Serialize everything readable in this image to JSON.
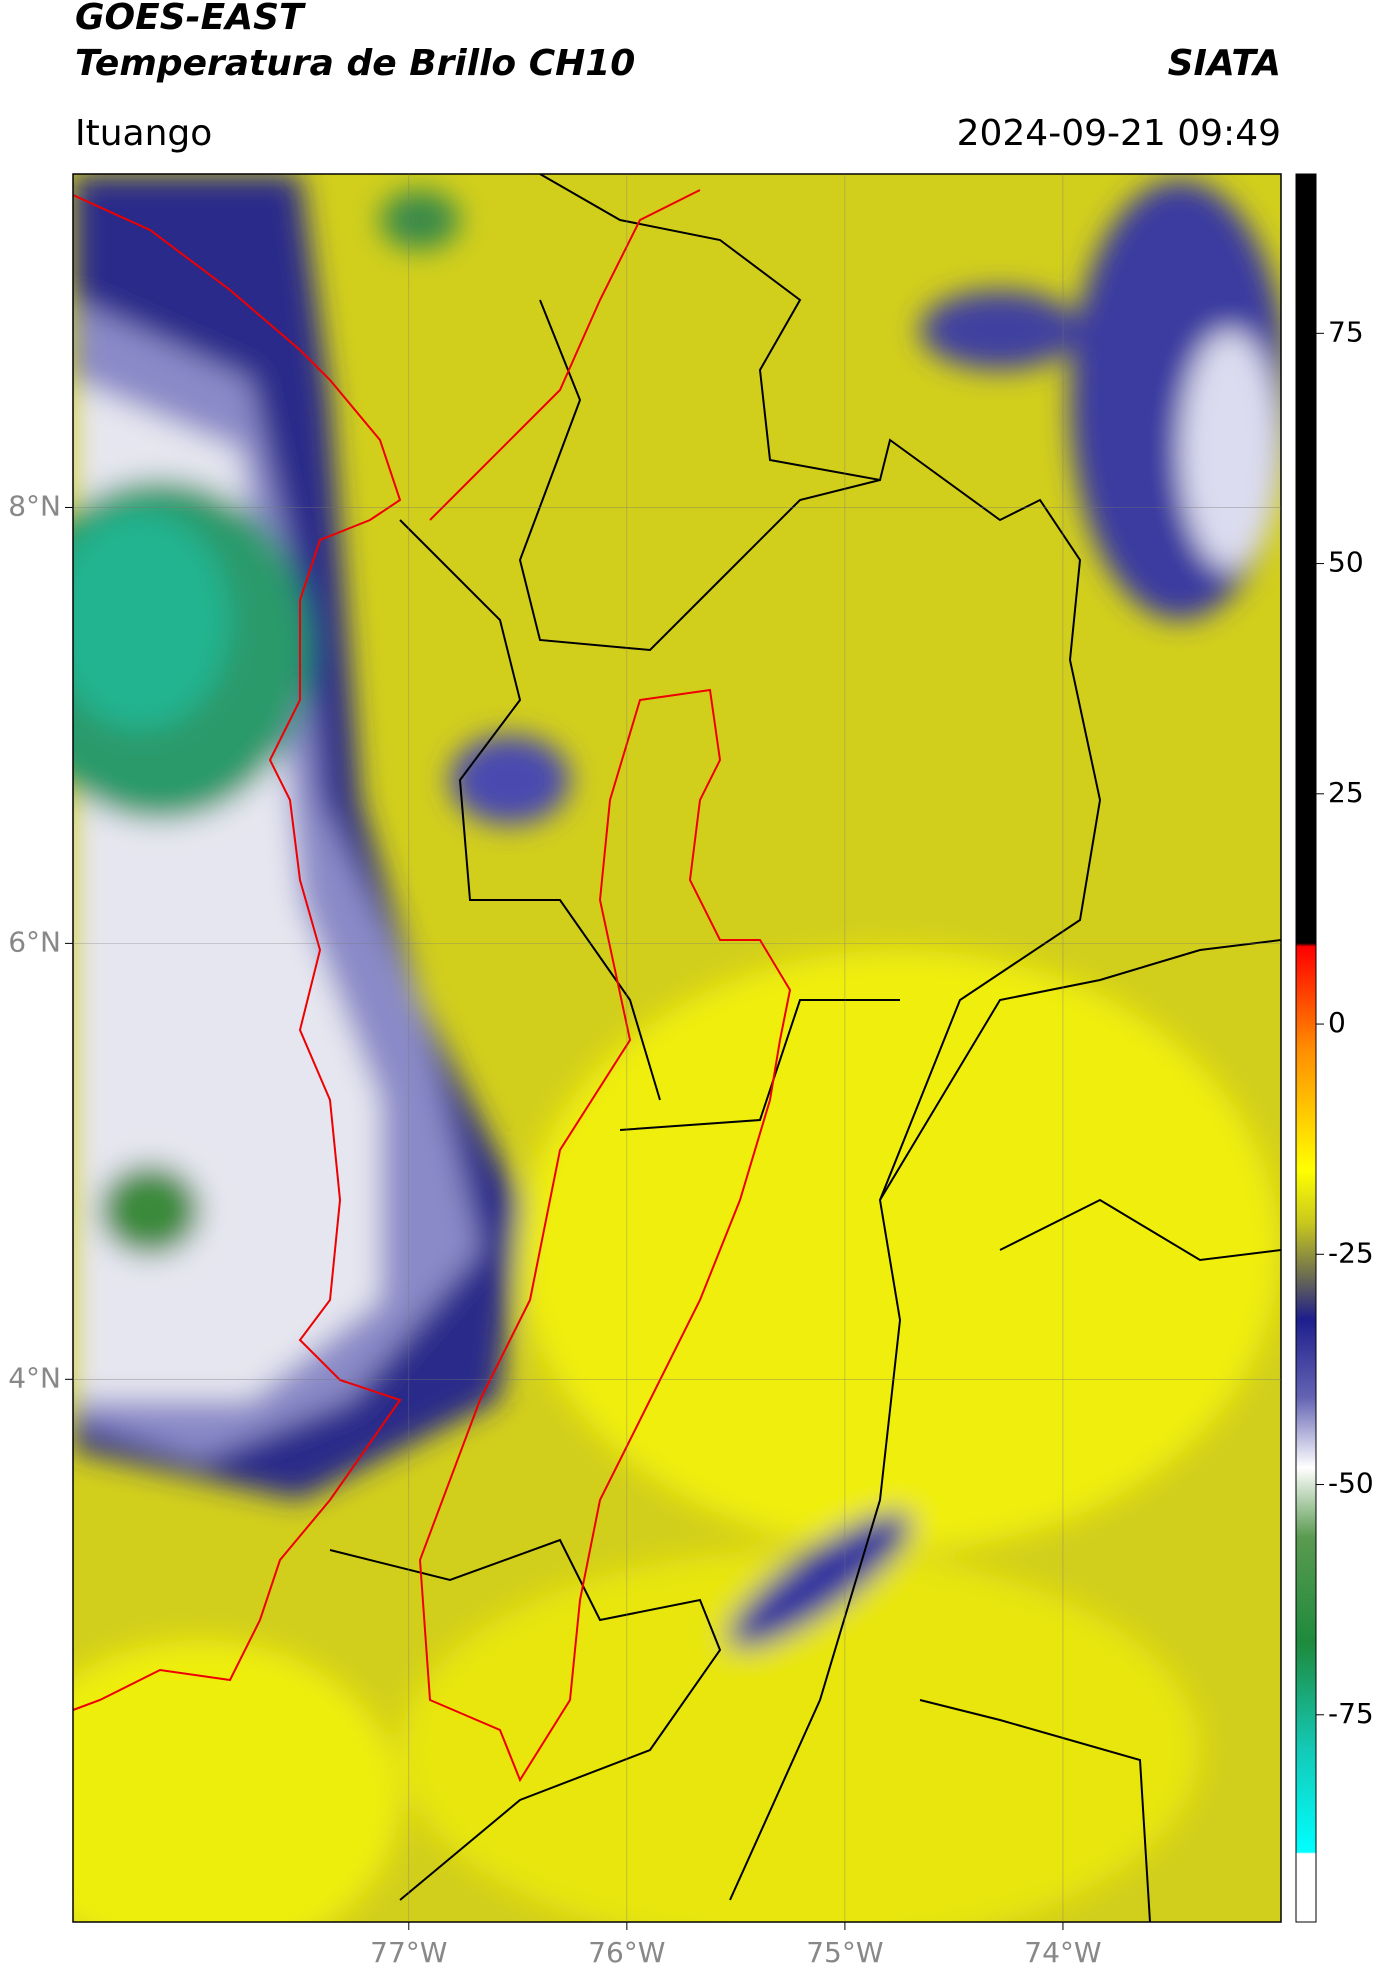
{
  "map": {
    "title": "GOES-EAST",
    "subtitle": "Temperatura de Brillo CH10",
    "brand": "SIATA",
    "region": "Ituango",
    "timestamp": "2024-09-21 09:49",
    "xlim": [
      -78.54,
      -73.0
    ],
    "ylim": [
      1.51,
      9.53
    ],
    "xticks": [
      {
        "value": -77,
        "label": "77°W"
      },
      {
        "value": -76,
        "label": "76°W"
      },
      {
        "value": -75,
        "label": "75°W"
      },
      {
        "value": -74,
        "label": "74°W"
      }
    ],
    "yticks": [
      {
        "value": 8,
        "label": "8°N"
      },
      {
        "value": 6,
        "label": "6°N"
      },
      {
        "value": 4,
        "label": "4°N"
      }
    ],
    "colorbar": {
      "lim": [
        -97.5,
        92.3
      ],
      "ticks": [
        75,
        50,
        25,
        0,
        -25,
        -50,
        -75
      ]
    }
  }
}
